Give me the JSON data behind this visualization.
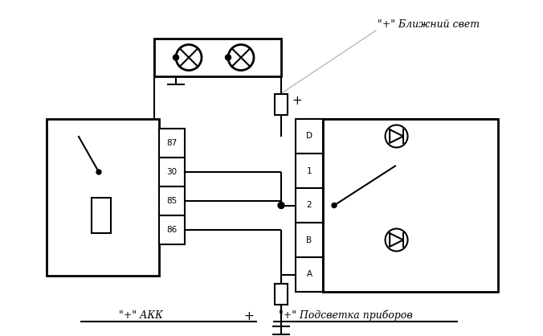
{
  "bg": "#ffffff",
  "lc": "#000000",
  "lw": 1.5,
  "lw2": 2.0,
  "label_blizhniy": "\"+\" Ближний свет",
  "label_akk": "\"+\" АКК",
  "label_plus": "+",
  "label_priborov": "\"+\" Подсветка приборов",
  "relay_pins": [
    "87",
    "30",
    "85",
    "86"
  ],
  "btn_pins": [
    "D",
    "1",
    "2",
    "B",
    "A"
  ],
  "fig_w": 6.76,
  "fig_h": 4.18,
  "dpi": 100
}
